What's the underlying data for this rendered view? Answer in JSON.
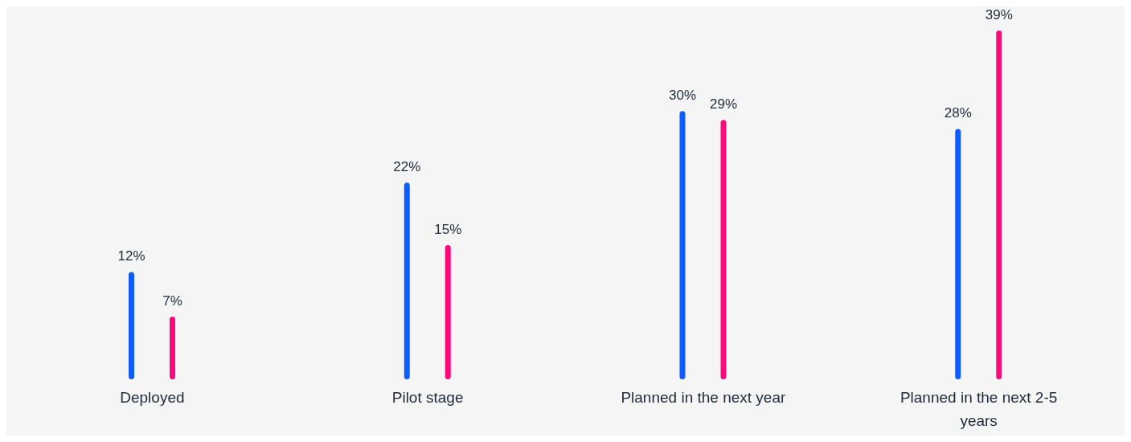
{
  "chart_data": {
    "type": "bar",
    "categories": [
      "Deployed",
      "Pilot stage",
      "Planned in the next year",
      "Planned in the next 2-5 years"
    ],
    "series": [
      {
        "color": "#0d5cff",
        "values": [
          12,
          22,
          30,
          28
        ],
        "value_labels": [
          "12%",
          "22%",
          "30%",
          "28%"
        ]
      },
      {
        "color": "#ff0a7a",
        "values": [
          7,
          15,
          29,
          39
        ],
        "value_labels": [
          "7%",
          "15%",
          "29%",
          "39%"
        ]
      }
    ],
    "grid": false,
    "legend": false
  }
}
